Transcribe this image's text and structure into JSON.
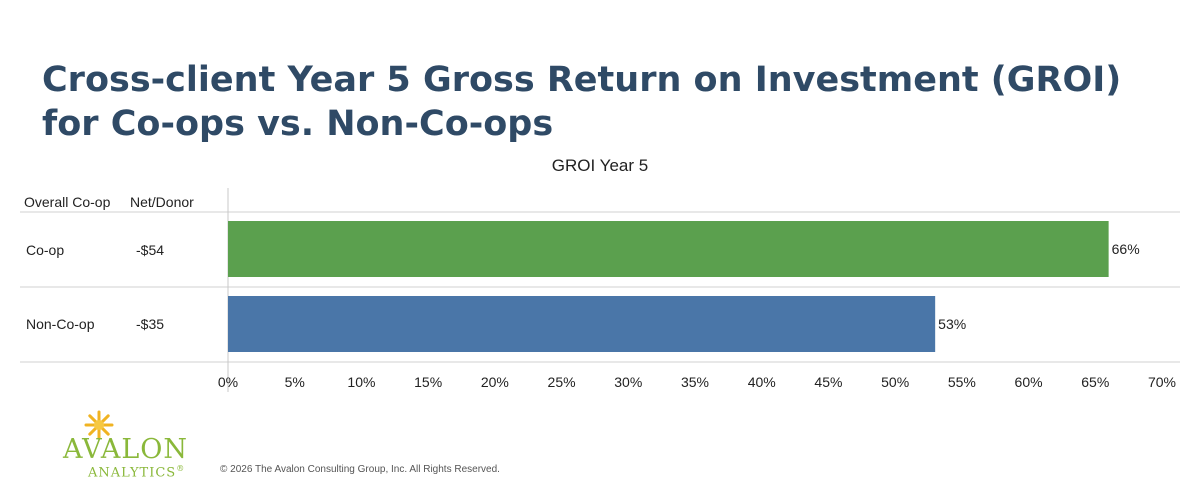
{
  "slide": {
    "title": "Cross-client Year 5 Gross Return on Investment (GROI) for Co-ops vs. Non-Co-ops"
  },
  "table": {
    "col1_header": "Overall Co-op",
    "col2_header": "Net/Donor",
    "rows": [
      {
        "label": "Co-op",
        "net_donor": "-$54"
      },
      {
        "label": "Non-Co-op",
        "net_donor": "-$35"
      }
    ]
  },
  "chart_data": {
    "type": "bar",
    "orientation": "horizontal",
    "title": "GROI Year 5",
    "categories": [
      "Co-op",
      "Non-Co-op"
    ],
    "values": [
      66,
      53
    ],
    "value_labels": [
      "66%",
      "53%"
    ],
    "xlim": [
      0,
      70
    ],
    "x_ticks": [
      "0%",
      "5%",
      "10%",
      "15%",
      "20%",
      "25%",
      "30%",
      "35%",
      "40%",
      "45%",
      "50%",
      "55%",
      "60%",
      "65%",
      "70%"
    ],
    "x_tick_values": [
      0,
      5,
      10,
      15,
      20,
      25,
      30,
      35,
      40,
      45,
      50,
      55,
      60,
      65,
      70
    ],
    "colors": [
      "#5ba04e",
      "#4a76a8"
    ],
    "grid": false,
    "legend": "none"
  },
  "footer": {
    "logo_text": "AVALON",
    "logo_sub": "ANALYTICS",
    "logo_mark": "®",
    "copyright": "© 2026 The Avalon Consulting Group, Inc. All Rights Reserved."
  }
}
